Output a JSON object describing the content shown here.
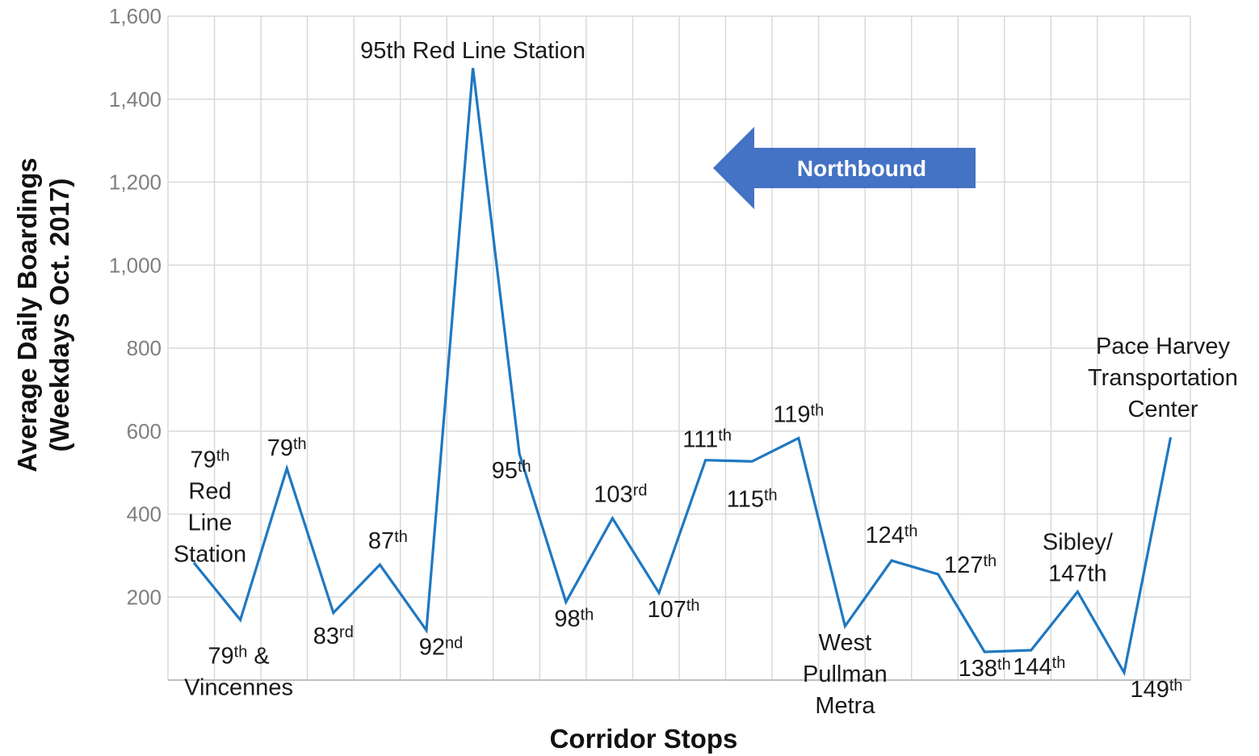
{
  "chart_data": {
    "type": "line",
    "title": "",
    "xlabel": "Corridor Stops",
    "ylabel_line1": "Average Daily Boardings",
    "ylabel_line2": "(Weekdays Oct. 2017)",
    "ylim": [
      0,
      1600
    ],
    "yticks": [
      200,
      400,
      600,
      800,
      1000,
      1200,
      1400,
      1600
    ],
    "ytick_labels": [
      "200",
      "400",
      "600",
      "800",
      "1,000",
      "1,200",
      "1,400",
      "1,600"
    ],
    "grid": true,
    "line_color": "#1f78c1",
    "grid_color": "#d9d9d9",
    "points": [
      {
        "stop": "79th Red Line Station",
        "value": 283,
        "label_lines": [
          [
            "79",
            "th"
          ],
          [
            "Red"
          ],
          [
            "Line"
          ],
          [
            "Station"
          ]
        ]
      },
      {
        "stop": "79th & Vincennes",
        "value": 145,
        "label_lines": [
          [
            "79",
            "th",
            " &"
          ],
          [
            "Vincennes"
          ]
        ]
      },
      {
        "stop": "79th",
        "value": 510,
        "label_lines": [
          [
            "79",
            "th"
          ]
        ]
      },
      {
        "stop": "83rd",
        "value": 162,
        "label_lines": [
          [
            "83",
            "rd"
          ]
        ]
      },
      {
        "stop": "87th",
        "value": 278,
        "label_lines": [
          [
            "87",
            "th"
          ]
        ]
      },
      {
        "stop": "92nd",
        "value": 120,
        "label_lines": [
          [
            "92",
            "nd"
          ]
        ]
      },
      {
        "stop": "95th Red Line Station",
        "value": 1475,
        "label_lines": [
          [
            "95th Red Line Station"
          ]
        ]
      },
      {
        "stop": "95th",
        "value": 545,
        "label_lines": [
          [
            "95",
            "th"
          ]
        ]
      },
      {
        "stop": "98th",
        "value": 188,
        "label_lines": [
          [
            "98",
            "th"
          ]
        ]
      },
      {
        "stop": "103rd",
        "value": 390,
        "label_lines": [
          [
            "103",
            "rd"
          ]
        ]
      },
      {
        "stop": "107th",
        "value": 210,
        "label_lines": [
          [
            "107",
            "th"
          ]
        ]
      },
      {
        "stop": "111th",
        "value": 530,
        "label_lines": [
          [
            "111",
            "th"
          ]
        ]
      },
      {
        "stop": "115th",
        "value": 527,
        "label_lines": [
          [
            "115",
            "th"
          ]
        ]
      },
      {
        "stop": "119th",
        "value": 583,
        "label_lines": [
          [
            "119",
            "th"
          ]
        ]
      },
      {
        "stop": "West Pullman Metra",
        "value": 130,
        "label_lines": [
          [
            "West"
          ],
          [
            "Pullman"
          ],
          [
            "Metra"
          ]
        ]
      },
      {
        "stop": "124th",
        "value": 288,
        "label_lines": [
          [
            "124",
            "th"
          ]
        ]
      },
      {
        "stop": "127th",
        "value": 255,
        "label_lines": [
          [
            "127",
            "th"
          ]
        ]
      },
      {
        "stop": "138th",
        "value": 68,
        "label_lines": [
          [
            "138",
            "th"
          ]
        ]
      },
      {
        "stop": "144th",
        "value": 72,
        "label_lines": [
          [
            "144",
            "th"
          ]
        ]
      },
      {
        "stop": "Sibley/147th",
        "value": 213,
        "label_lines": [
          [
            "Sibley/"
          ],
          [
            "147th"
          ]
        ]
      },
      {
        "stop": "149th",
        "value": 18,
        "label_lines": [
          [
            "149",
            "th"
          ]
        ]
      },
      {
        "stop": "Pace Harvey Transportation Center",
        "value": 585,
        "label_lines": [
          [
            "Pace Harvey"
          ],
          [
            "Transportation"
          ],
          [
            "Center"
          ]
        ]
      }
    ],
    "annotation": {
      "text": "Northbound",
      "shape": "left-arrow",
      "color": "#4472c4"
    }
  }
}
